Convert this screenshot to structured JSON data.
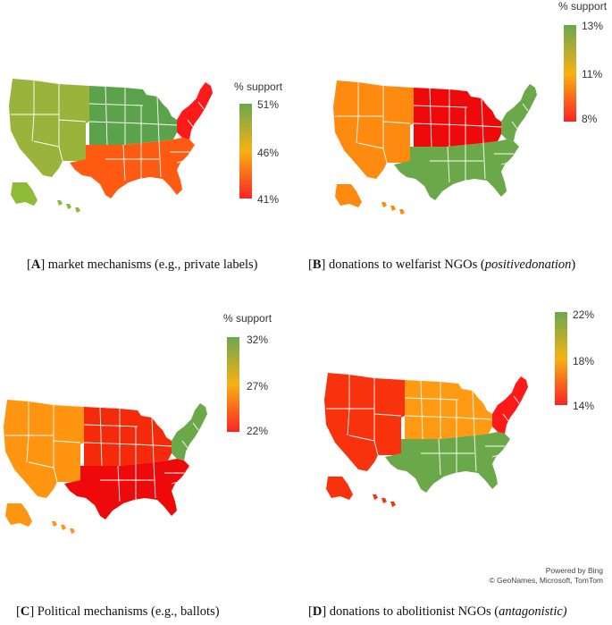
{
  "panels": [
    {
      "id": "A",
      "caption": {
        "open": "[",
        "letter": "A",
        "close": "] market mechanisms (e.g., private labels)",
        "italic": ""
      },
      "legend": {
        "title": "% support",
        "ticks": [
          "51%",
          "46%",
          "41%"
        ],
        "colors": [
          "#6ba84f",
          "#f7b114",
          "#f92424"
        ]
      },
      "region_colors": {
        "west": "#9ab33a",
        "midwest": "#5aa34a",
        "south": "#ff5a12",
        "northeast": "#ff1a1a",
        "alaska": "#8fbb3a",
        "hawaii": "#8fbb3a"
      }
    },
    {
      "id": "B",
      "caption": {
        "open": "[",
        "letter": "B",
        "close": "] donations to welfarist NGOs (",
        "italic": "positivedonation",
        "tail": ")"
      },
      "legend": {
        "title": "% support",
        "ticks": [
          "13%",
          "11%",
          "8%"
        ],
        "colors": [
          "#6ba84f",
          "#f7b114",
          "#f92424"
        ]
      },
      "region_colors": {
        "west": "#ff8a10",
        "midwest": "#ee0a0a",
        "south": "#6aa84a",
        "northeast": "#6aa84a",
        "alaska": "#ff8a10",
        "hawaii": "#ff8a10"
      }
    },
    {
      "id": "C",
      "caption": {
        "open": "[",
        "letter": "C",
        "close": "] Political mechanisms (e.g., ballots)",
        "italic": ""
      },
      "legend": {
        "title": "% support",
        "ticks": [
          "32%",
          "27%",
          "22%"
        ],
        "colors": [
          "#6ba84f",
          "#f7b114",
          "#f92424"
        ]
      },
      "region_colors": {
        "west": "#ff9510",
        "midwest": "#f52a0a",
        "south": "#ee0a0a",
        "northeast": "#6aa84a",
        "alaska": "#ff9510",
        "hawaii": "#ff9510"
      }
    },
    {
      "id": "D",
      "caption": {
        "open": "[",
        "letter": "D",
        "close": "] donations to abolitionist NGOs (",
        "italic": "antagonistic)",
        "tail": ""
      },
      "legend": {
        "title": "",
        "ticks": [
          "22%",
          "18%",
          "14%"
        ],
        "colors": [
          "#6ba84f",
          "#f7b114",
          "#f92424"
        ]
      },
      "region_colors": {
        "west": "#f8320c",
        "midwest": "#ff9a12",
        "south": "#6aa84a",
        "northeast": "#ff1a1a",
        "alaska": "#f8320c",
        "hawaii": "#f8320c"
      }
    }
  ],
  "attribution": {
    "line1": "Powered by Bing",
    "line2": "© GeoNames, Microsoft, TomTom"
  }
}
